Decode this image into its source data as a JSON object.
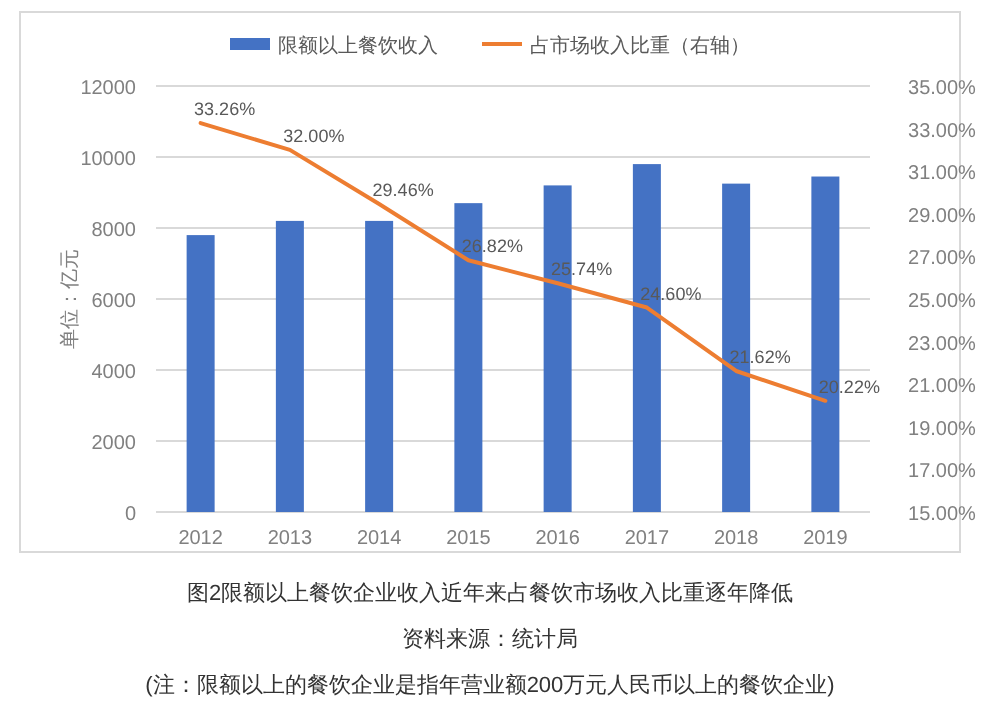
{
  "chart_data": {
    "type": "bar",
    "categories": [
      "2012",
      "2013",
      "2014",
      "2015",
      "2016",
      "2017",
      "2018",
      "2019"
    ],
    "ylabel": "单位：亿元",
    "ylim": [
      0,
      12000
    ],
    "yticks": [
      0,
      2000,
      4000,
      6000,
      8000,
      10000,
      12000
    ],
    "y2lim": [
      15,
      35
    ],
    "y2ticks": [
      {
        "value": 15,
        "label": "15.00%"
      },
      {
        "value": 17,
        "label": "17.00%"
      },
      {
        "value": 19,
        "label": "19.00%"
      },
      {
        "value": 21,
        "label": "21.00%"
      },
      {
        "value": 23,
        "label": "23.00%"
      },
      {
        "value": 25,
        "label": "25.00%"
      },
      {
        "value": 27,
        "label": "27.00%"
      },
      {
        "value": 29,
        "label": "29.00%"
      },
      {
        "value": 31,
        "label": "31.00%"
      },
      {
        "value": 33,
        "label": "33.00%"
      },
      {
        "value": 35,
        "label": "35.00%"
      }
    ],
    "grid": "y",
    "legend": "top",
    "series": [
      {
        "name": "限额以上餐饮收入",
        "color": "#4472c4",
        "values": [
          7800,
          8200,
          8200,
          8700,
          9200,
          9800,
          9250,
          9450
        ]
      },
      {
        "name": "占市场收入比重（右轴）",
        "type": "line",
        "axis": "y2",
        "color": "#ed7d31",
        "values": [
          33.26,
          32.0,
          29.46,
          26.82,
          25.74,
          24.6,
          21.62,
          20.22
        ],
        "value_labels": [
          "33.26%",
          "32.00%",
          "29.46%",
          "26.82%",
          "25.74%",
          "24.60%",
          "21.62%",
          "20.22%"
        ]
      }
    ],
    "annotations": [
      "图2限额以上餐饮企业收入近年来占餐饮市场收入比重逐年降低",
      "资料来源：统计局",
      "(注：限额以上的餐饮企业是指年营业额200万元人民币以上的餐饮企业)"
    ]
  }
}
